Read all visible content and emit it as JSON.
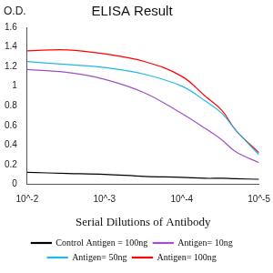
{
  "chart_data": {
    "type": "line",
    "title": "ELISA Result",
    "y_label": "O.D.",
    "x_label": "Serial Dilutions of Antibody",
    "log": "x",
    "grid": false,
    "legend": "bottom",
    "x": [
      0.01,
      0.003,
      0.001,
      0.0003,
      0.0001,
      5e-05,
      3e-05,
      2e-05,
      1e-05
    ],
    "xlim": [
      0.01,
      1e-05
    ],
    "xticks": [
      {
        "value": 0.01,
        "label": "10^-2"
      },
      {
        "value": 0.001,
        "label": "10^-3"
      },
      {
        "value": 0.0001,
        "label": "10^-4"
      },
      {
        "value": 1e-05,
        "label": "10^-5"
      }
    ],
    "ylim": [
      0,
      1.6
    ],
    "yticks": [
      0,
      0.2,
      0.4,
      0.6,
      0.8,
      1,
      1.2,
      1.4,
      1.6
    ],
    "series": [
      {
        "name": "Control Antigen = 100ng",
        "color": "#000000",
        "values": [
          0.12,
          0.11,
          0.1,
          0.08,
          0.07,
          0.06,
          0.06,
          0.055,
          0.05
        ]
      },
      {
        "name": "Antigen= 10ng",
        "color": "#a050c8",
        "values": [
          1.17,
          1.14,
          1.07,
          0.93,
          0.72,
          0.57,
          0.45,
          0.33,
          0.22
        ]
      },
      {
        "name": "Antigen= 50ng",
        "color": "#22b8e8",
        "values": [
          1.25,
          1.22,
          1.19,
          1.12,
          1.0,
          0.85,
          0.72,
          0.55,
          0.3
        ]
      },
      {
        "name": "Antigen= 100ng",
        "color": "#ff0000",
        "values": [
          1.36,
          1.37,
          1.33,
          1.25,
          1.1,
          0.9,
          0.75,
          0.55,
          0.32
        ]
      }
    ]
  }
}
